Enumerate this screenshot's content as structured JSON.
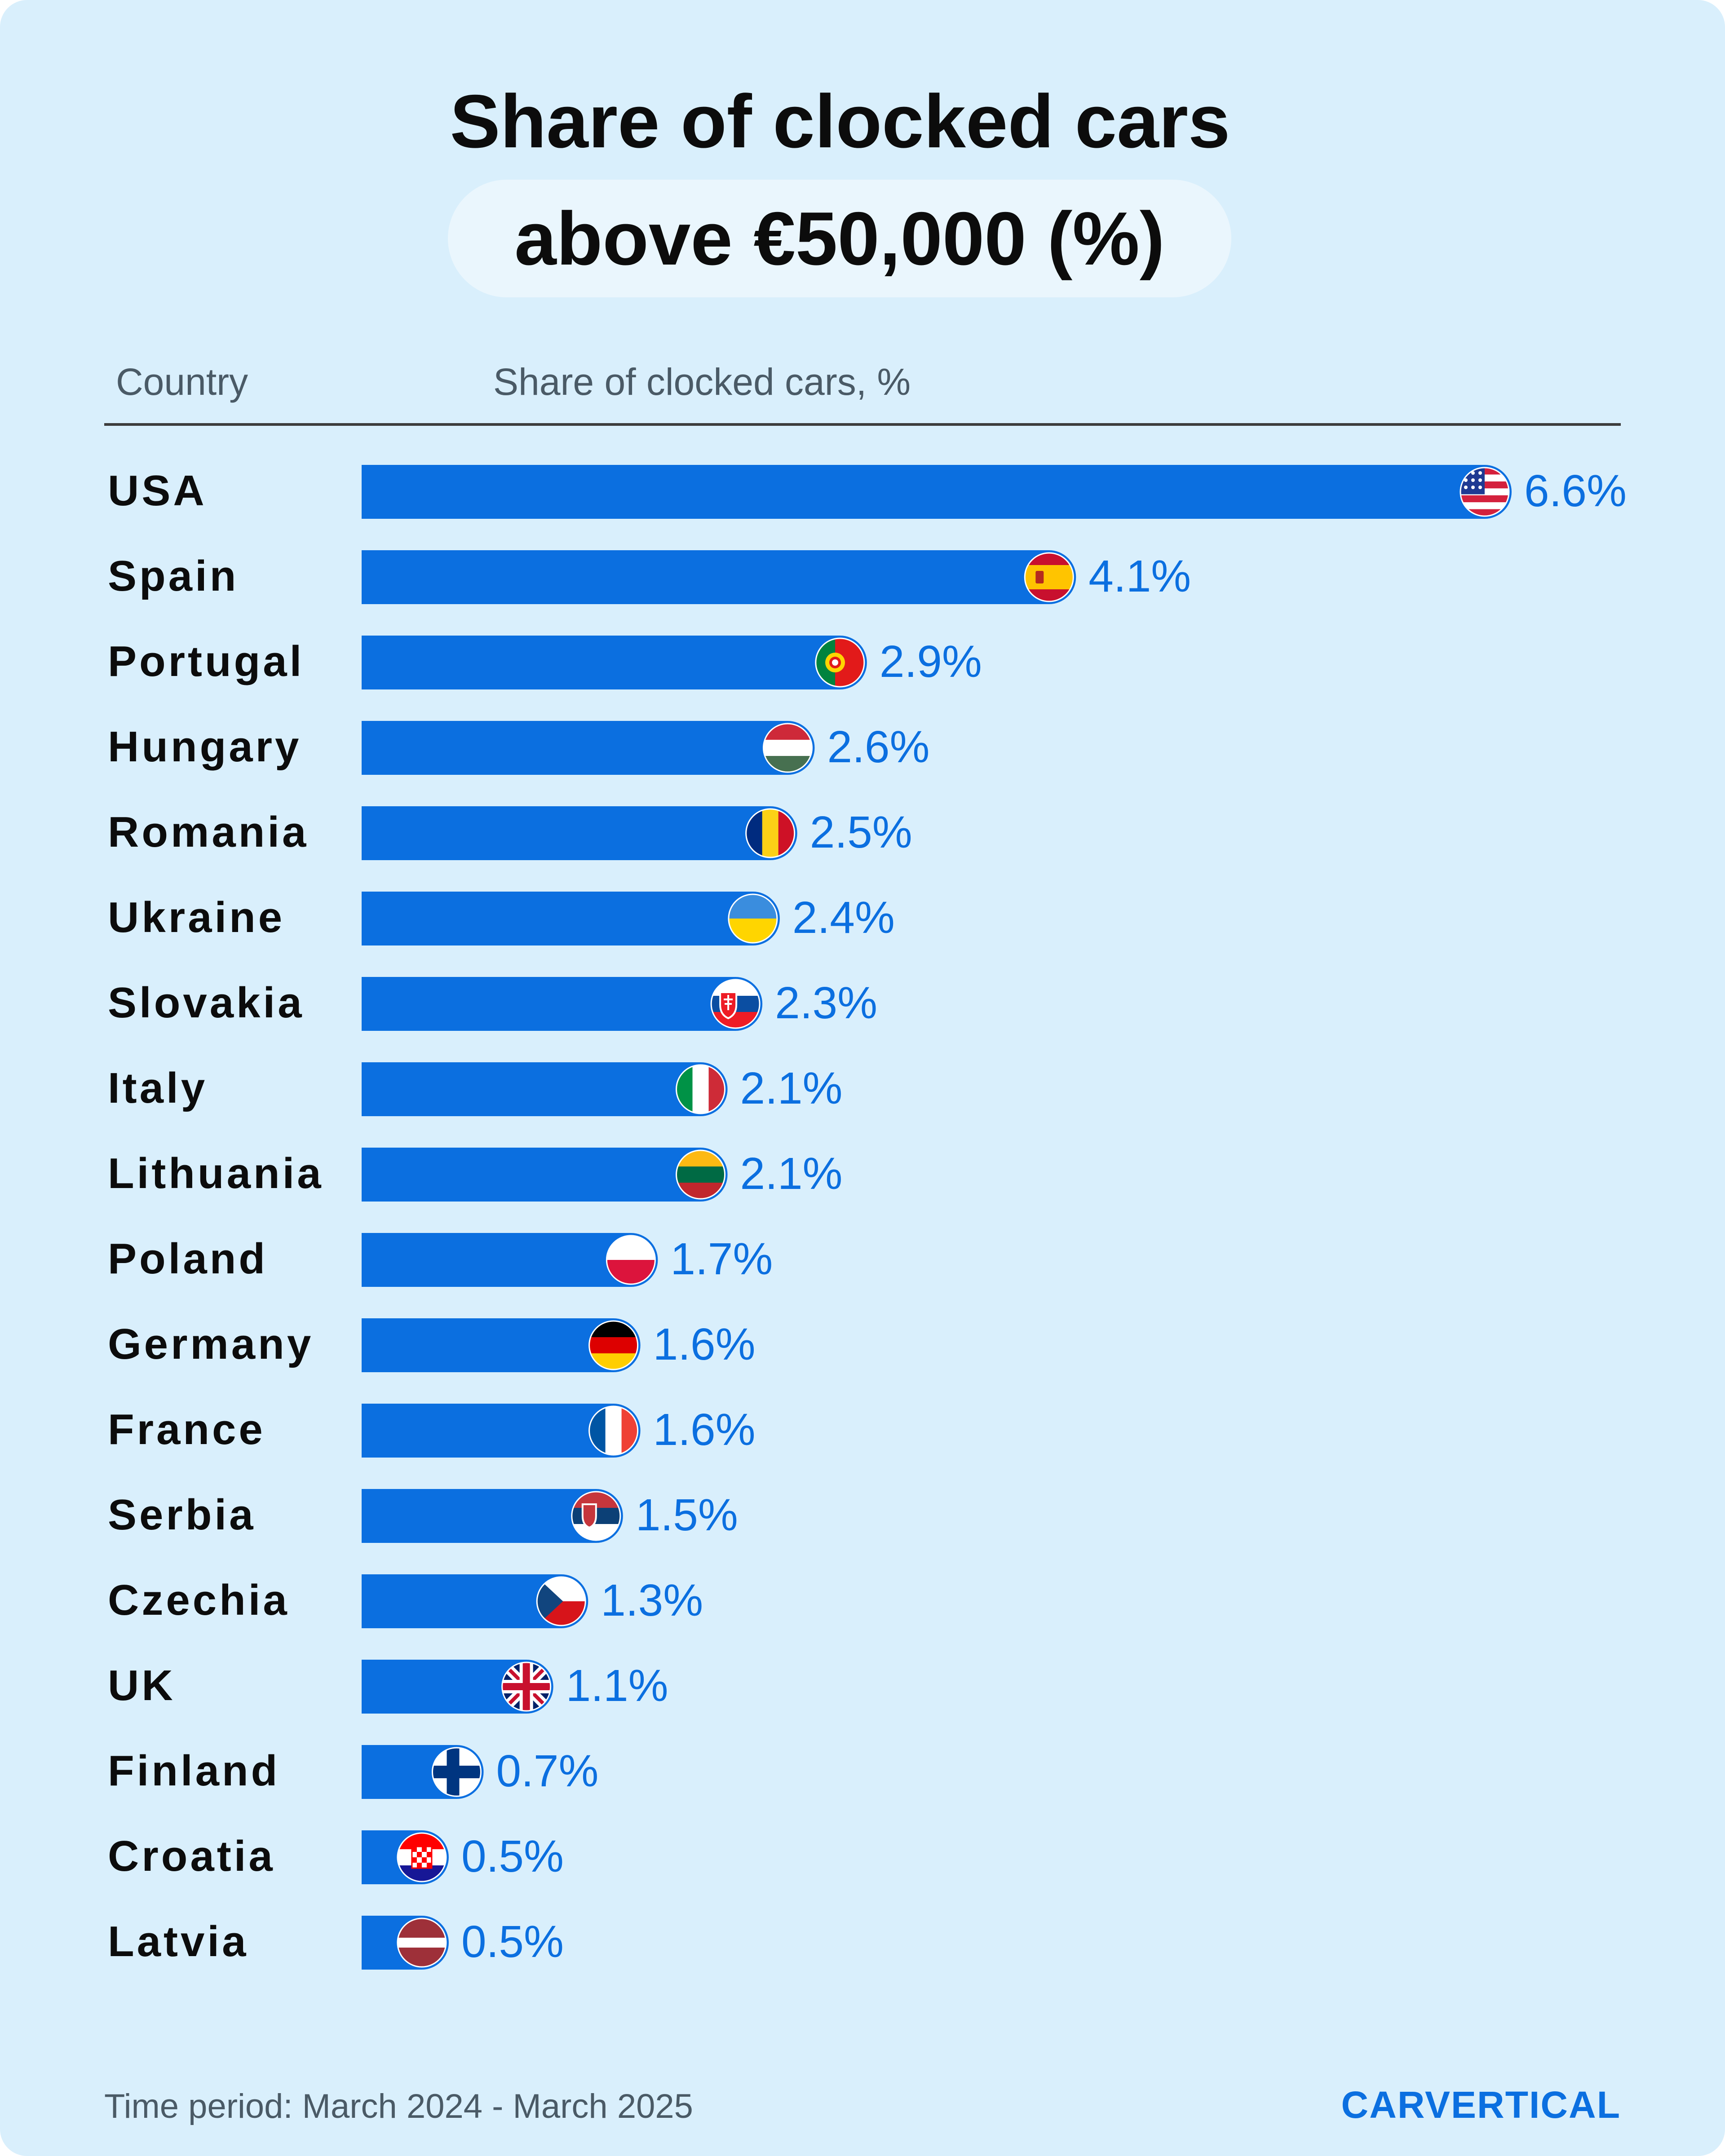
{
  "chart_data": {
    "type": "bar",
    "orientation": "horizontal",
    "title": "Share of clocked cars",
    "subtitle": "above €50,000 (%)",
    "category_header": "Country",
    "value_header": "Share of clocked cars, %",
    "categories": [
      "USA",
      "Spain",
      "Portugal",
      "Hungary",
      "Romania",
      "Ukraine",
      "Slovakia",
      "Italy",
      "Lithuania",
      "Poland",
      "Germany",
      "France",
      "Serbia",
      "Czechia",
      "UK",
      "Finland",
      "Croatia",
      "Latvia"
    ],
    "values": [
      6.6,
      4.1,
      2.9,
      2.6,
      2.5,
      2.4,
      2.3,
      2.1,
      2.1,
      1.7,
      1.6,
      1.6,
      1.5,
      1.3,
      1.1,
      0.7,
      0.5,
      0.5
    ],
    "labels": [
      "6.6%",
      "4.1%",
      "2.9%",
      "2.6%",
      "2.5%",
      "2.4%",
      "2.3%",
      "2.1%",
      "2.1%",
      "1.7%",
      "1.6%",
      "1.6%",
      "1.5%",
      "1.3%",
      "1.1%",
      "0.7%",
      "0.5%",
      "0.5%"
    ],
    "flag_icons": [
      "flag-usa-icon",
      "flag-spain-icon",
      "flag-portugal-icon",
      "flag-hungary-icon",
      "flag-romania-icon",
      "flag-ukraine-icon",
      "flag-slovakia-icon",
      "flag-italy-icon",
      "flag-lithuania-icon",
      "flag-poland-icon",
      "flag-germany-icon",
      "flag-france-icon",
      "flag-serbia-icon",
      "flag-czechia-icon",
      "flag-uk-icon",
      "flag-finland-icon",
      "flag-croatia-icon",
      "flag-latvia-icon"
    ],
    "xlim": [
      0,
      6.6
    ],
    "grid": false,
    "bar_color": "#0b6fe0",
    "label_color": "#0b6fe0"
  },
  "footer": {
    "time_period": "Time period: March 2024 - March 2025",
    "brand": "CARVERTICAL"
  }
}
